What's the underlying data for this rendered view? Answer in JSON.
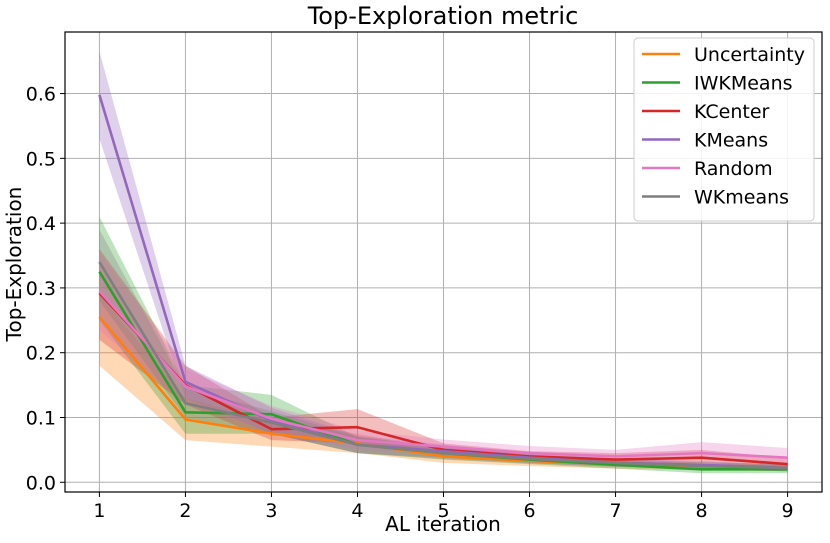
{
  "chart_data": {
    "type": "line",
    "title": "Top-Exploration metric",
    "xlabel": "AL iteration",
    "ylabel": "Top-Exploration",
    "x": [
      1,
      2,
      3,
      4,
      5,
      6,
      7,
      8,
      9
    ],
    "xlim": [
      0.6,
      9.4
    ],
    "ylim": [
      -0.015,
      0.695
    ],
    "xticks": [
      "1",
      "2",
      "3",
      "4",
      "5",
      "6",
      "7",
      "8",
      "9"
    ],
    "yticks": [
      "0.0",
      "0.1",
      "0.2",
      "0.3",
      "0.4",
      "0.5",
      "0.6"
    ],
    "grid": true,
    "legend_position": "top-right",
    "series": [
      {
        "name": "Uncertainty",
        "color": "#ff7f0e",
        "values": [
          0.255,
          0.097,
          0.075,
          0.06,
          0.04,
          0.033,
          0.028,
          0.025,
          0.022
        ],
        "lower": [
          0.18,
          0.065,
          0.055,
          0.045,
          0.03,
          0.025,
          0.021,
          0.019,
          0.017
        ],
        "upper": [
          0.29,
          0.13,
          0.095,
          0.075,
          0.05,
          0.04,
          0.034,
          0.031,
          0.028
        ]
      },
      {
        "name": "IWKMeans",
        "color": "#2ca02c",
        "values": [
          0.325,
          0.108,
          0.105,
          0.058,
          0.045,
          0.035,
          0.027,
          0.02,
          0.02
        ],
        "lower": [
          0.25,
          0.075,
          0.075,
          0.045,
          0.035,
          0.028,
          0.021,
          0.014,
          0.014
        ],
        "upper": [
          0.41,
          0.15,
          0.135,
          0.07,
          0.055,
          0.042,
          0.033,
          0.027,
          0.027
        ]
      },
      {
        "name": "KCenter",
        "color": "#d62728",
        "values": [
          0.292,
          0.15,
          0.082,
          0.085,
          0.05,
          0.04,
          0.035,
          0.038,
          0.028
        ],
        "lower": [
          0.22,
          0.12,
          0.065,
          0.06,
          0.04,
          0.032,
          0.028,
          0.03,
          0.022
        ],
        "upper": [
          0.36,
          0.18,
          0.1,
          0.113,
          0.06,
          0.048,
          0.045,
          0.05,
          0.038
        ]
      },
      {
        "name": "KMeans",
        "color": "#9467bd",
        "values": [
          0.598,
          0.155,
          0.095,
          0.058,
          0.048,
          0.038,
          0.03,
          0.027,
          0.022
        ],
        "lower": [
          0.53,
          0.13,
          0.075,
          0.045,
          0.038,
          0.03,
          0.024,
          0.021,
          0.017
        ],
        "upper": [
          0.665,
          0.18,
          0.115,
          0.072,
          0.058,
          0.046,
          0.036,
          0.033,
          0.027
        ]
      },
      {
        "name": "Random",
        "color": "#e377c2",
        "values": [
          0.295,
          0.148,
          0.098,
          0.065,
          0.055,
          0.045,
          0.04,
          0.045,
          0.038
        ],
        "lower": [
          0.235,
          0.12,
          0.078,
          0.05,
          0.045,
          0.036,
          0.032,
          0.034,
          0.028
        ],
        "upper": [
          0.355,
          0.175,
          0.118,
          0.08,
          0.066,
          0.056,
          0.05,
          0.062,
          0.053
        ]
      },
      {
        "name": "WKmeans",
        "color": "#7f7f7f",
        "values": [
          0.34,
          0.122,
          0.092,
          0.058,
          0.045,
          0.036,
          0.03,
          0.025,
          0.022
        ],
        "lower": [
          0.28,
          0.1,
          0.075,
          0.045,
          0.036,
          0.029,
          0.024,
          0.02,
          0.017
        ],
        "upper": [
          0.39,
          0.145,
          0.11,
          0.07,
          0.054,
          0.043,
          0.036,
          0.031,
          0.028
        ]
      }
    ]
  }
}
